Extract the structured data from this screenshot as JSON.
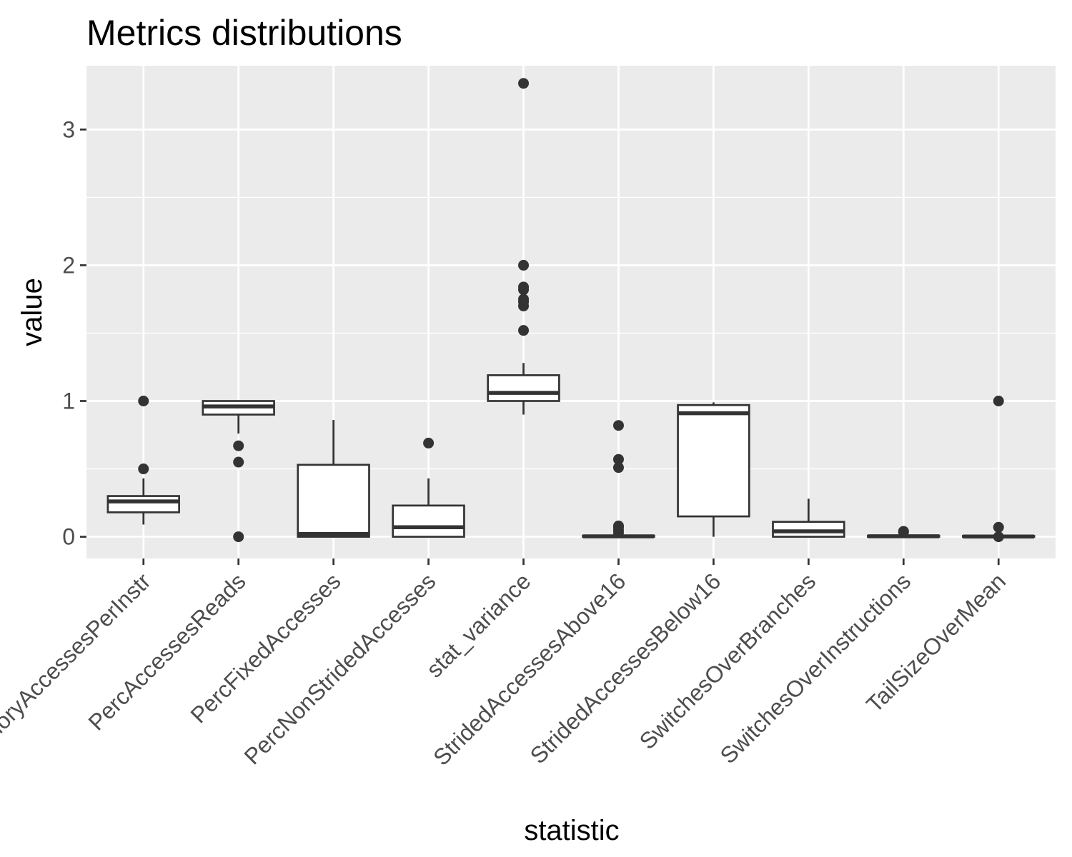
{
  "chart_data": {
    "type": "boxplot",
    "title": "Metrics distributions",
    "xlabel": "statistic",
    "ylabel": "value",
    "ylim": [
      -0.16,
      3.47
    ],
    "y_ticks": [
      0,
      1,
      2,
      3
    ],
    "grid": true,
    "legend": "none",
    "colors": {
      "panel": "#ebebeb",
      "grid": "#ffffff",
      "box_fill": "#ffffff",
      "box_stroke": "#333333",
      "tick_label": "#4d4d4d"
    },
    "categories": [
      {
        "label": "MemoryAccessesPerInstr",
        "lower_whisker": 0.09,
        "q1": 0.18,
        "median": 0.26,
        "q3": 0.3,
        "upper_whisker": 0.43,
        "outliers": [
          0.5,
          1.0
        ]
      },
      {
        "label": "PercAccessesReads",
        "lower_whisker": 0.76,
        "q1": 0.9,
        "median": 0.96,
        "q3": 1.0,
        "upper_whisker": 1.0,
        "outliers": [
          0.0,
          0.55,
          0.67
        ]
      },
      {
        "label": "PercFixedAccesses",
        "lower_whisker": 0.0,
        "q1": 0.0,
        "median": 0.02,
        "q3": 0.53,
        "upper_whisker": 0.86,
        "outliers": []
      },
      {
        "label": "PercNonStridedAccesses",
        "lower_whisker": 0.0,
        "q1": 0.0,
        "median": 0.07,
        "q3": 0.23,
        "upper_whisker": 0.43,
        "outliers": [
          0.69
        ]
      },
      {
        "label": "stat_variance",
        "lower_whisker": 0.9,
        "q1": 1.0,
        "median": 1.06,
        "q3": 1.19,
        "upper_whisker": 1.28,
        "outliers": [
          1.52,
          1.7,
          1.73,
          1.75,
          1.82,
          1.84,
          2.0,
          3.34
        ]
      },
      {
        "label": "StridedAccessesAbove16",
        "lower_whisker": 0.0,
        "q1": 0.0,
        "median": 0.003,
        "q3": 0.008,
        "upper_whisker": 0.015,
        "outliers": [
          0.03,
          0.05,
          0.07,
          0.08,
          0.51,
          0.57,
          0.82
        ]
      },
      {
        "label": "StridedAccessesBelow16",
        "lower_whisker": 0.0,
        "q1": 0.15,
        "median": 0.91,
        "q3": 0.97,
        "upper_whisker": 0.99,
        "outliers": []
      },
      {
        "label": "SwitchesOverBranches",
        "lower_whisker": 0.0,
        "q1": 0.0,
        "median": 0.04,
        "q3": 0.11,
        "upper_whisker": 0.28,
        "outliers": []
      },
      {
        "label": "SwitchesOverInstructions",
        "lower_whisker": 0.0,
        "q1": 0.0,
        "median": 0.004,
        "q3": 0.008,
        "upper_whisker": 0.02,
        "outliers": [
          0.035,
          0.04
        ]
      },
      {
        "label": "TailSizeOverMean",
        "lower_whisker": 0.0,
        "q1": 0.0,
        "median": 0.002,
        "q3": 0.006,
        "upper_whisker": 0.012,
        "outliers": [
          0.0,
          0.07,
          1.0
        ]
      }
    ]
  }
}
